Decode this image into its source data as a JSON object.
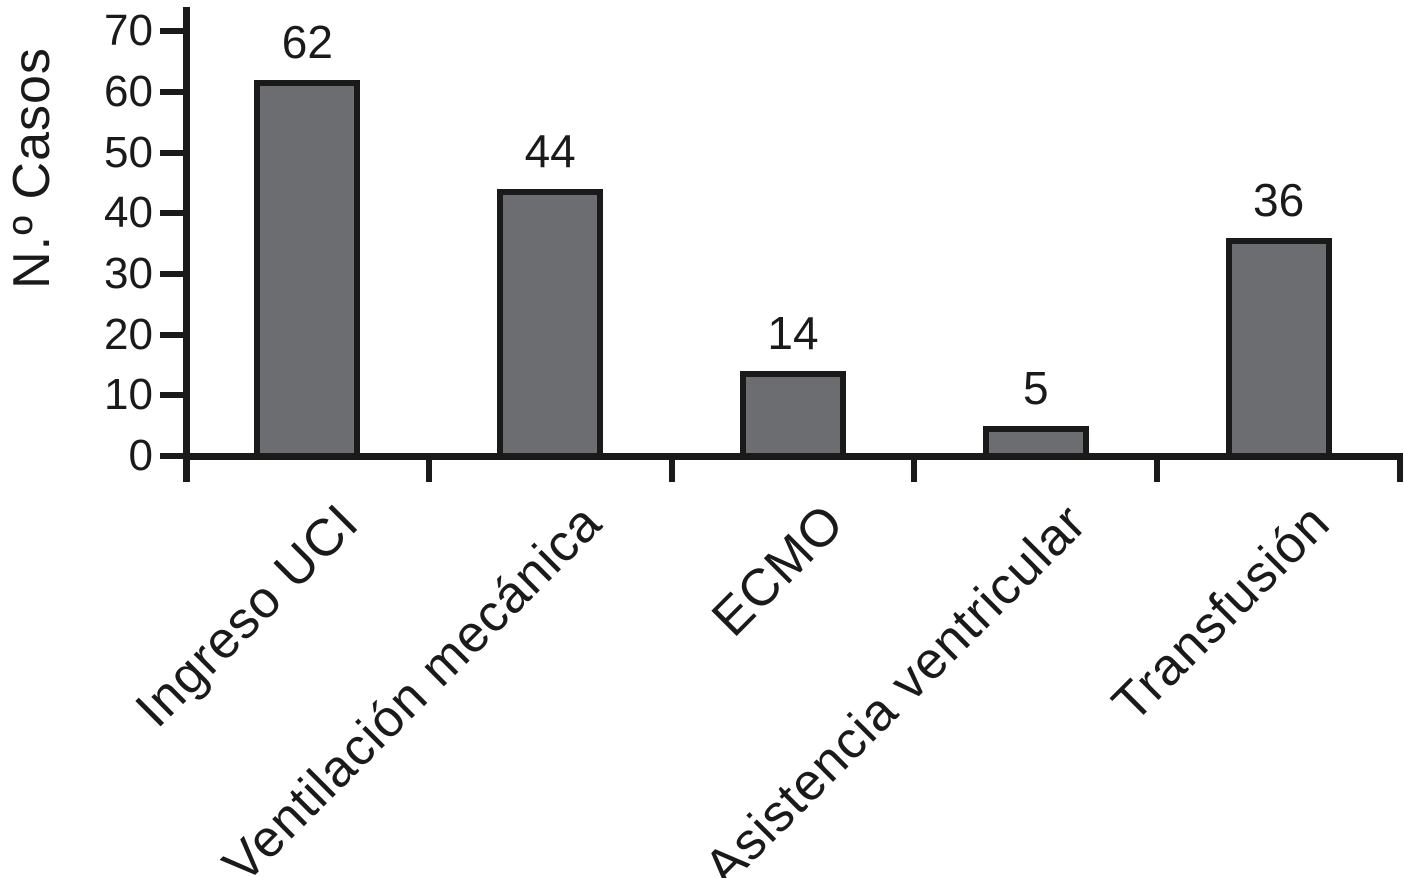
{
  "chart_data": {
    "type": "bar",
    "title": "",
    "xlabel": "",
    "ylabel": "N.º Casos",
    "categories": [
      "Ingreso UCI",
      "Ventilación mecánica",
      "ECMO",
      "Asistencia ventricular",
      "Transfusión"
    ],
    "values": [
      62,
      44,
      14,
      5,
      36
    ],
    "bar_value_labels": [
      "62",
      "44",
      "14",
      "5",
      "36"
    ],
    "yticks": [
      0,
      10,
      20,
      30,
      40,
      50,
      60,
      70
    ],
    "ylim": [
      0,
      70
    ],
    "grid": false,
    "legend_position": "none",
    "x_label_rotation_deg": 45
  },
  "colors": {
    "background": "#ffffff",
    "bar_fill": "#6b6d70",
    "bar_border": "#1a1a1a",
    "axis": "#1a1a1a",
    "text": "#1a1a1a"
  }
}
